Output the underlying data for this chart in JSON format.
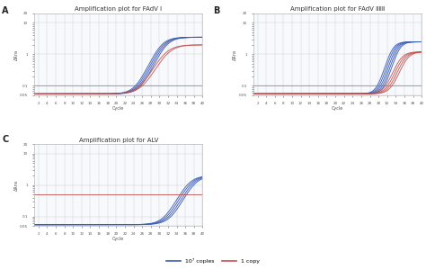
{
  "title_A": "Amplification plot for FAdV Ⅰ",
  "title_B": "Amplification plot for FAdV ⅡⅡⅡ",
  "title_C": "Amplification plot for ALV",
  "xlabel": "Cycle",
  "ylabel": "ΔRns",
  "x_ticks": [
    2,
    4,
    6,
    8,
    10,
    12,
    14,
    16,
    18,
    20,
    22,
    24,
    26,
    28,
    30,
    32,
    34,
    36,
    38,
    40
  ],
  "xlim": [
    1,
    40
  ],
  "blue_color": "#3a5bb5",
  "red_color": "#c0504d",
  "bg_color": "#ffffff",
  "grid_color": "#cccccc",
  "label_copies_high": "10⁷ coples",
  "label_copies_low": "1 copy",
  "ymin": 0.05,
  "ymax": 20,
  "yticks": [
    0.05,
    0.1,
    1,
    10,
    20
  ],
  "ytick_labels": [
    "0.05",
    "0.1",
    "1",
    "10",
    "20"
  ]
}
